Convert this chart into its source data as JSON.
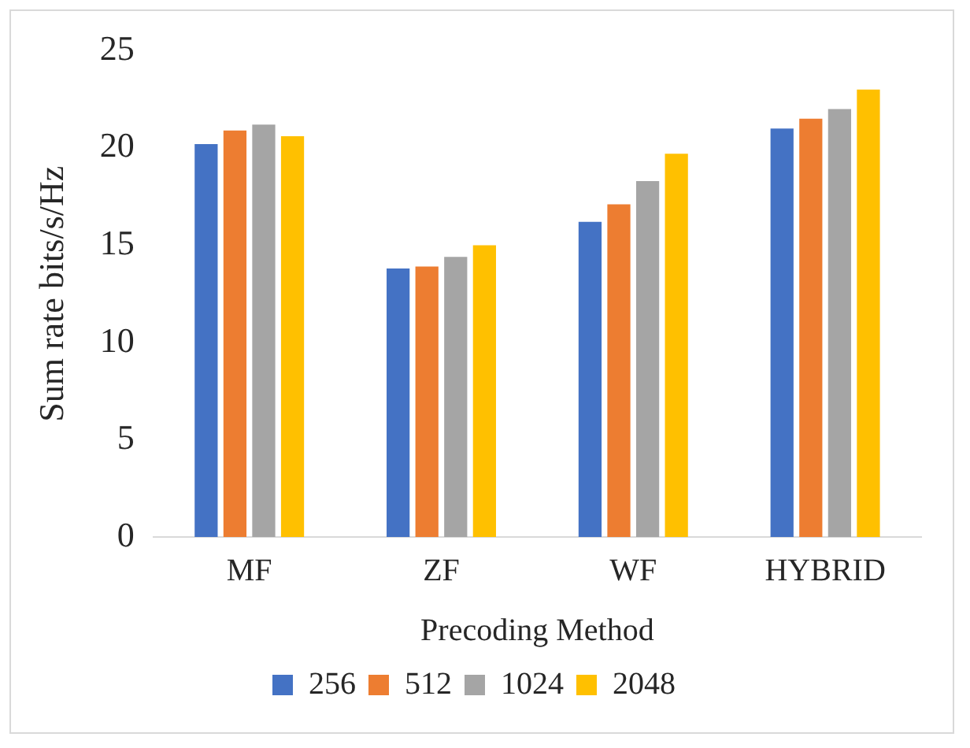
{
  "chart_data": {
    "type": "bar",
    "xlabel": "Precoding Method",
    "ylabel": "Sum rate bits/s/Hz",
    "categories": [
      "MF",
      "ZF",
      "WF",
      "HYBRID"
    ],
    "series": [
      {
        "name": "256",
        "color": "#4472c4",
        "values": [
          20.2,
          13.8,
          16.2,
          21.0
        ]
      },
      {
        "name": "512",
        "color": "#ed7d31",
        "values": [
          20.9,
          13.9,
          17.1,
          21.5
        ]
      },
      {
        "name": "1024",
        "color": "#a5a5a5",
        "values": [
          21.2,
          14.4,
          18.3,
          22.0
        ]
      },
      {
        "name": "2048",
        "color": "#ffc000",
        "values": [
          20.6,
          15.0,
          19.7,
          23.0
        ]
      }
    ],
    "ylim": [
      0,
      25
    ],
    "yticks": [
      0,
      5,
      10,
      15,
      20,
      25
    ],
    "grid": false,
    "legend": "bottom"
  }
}
